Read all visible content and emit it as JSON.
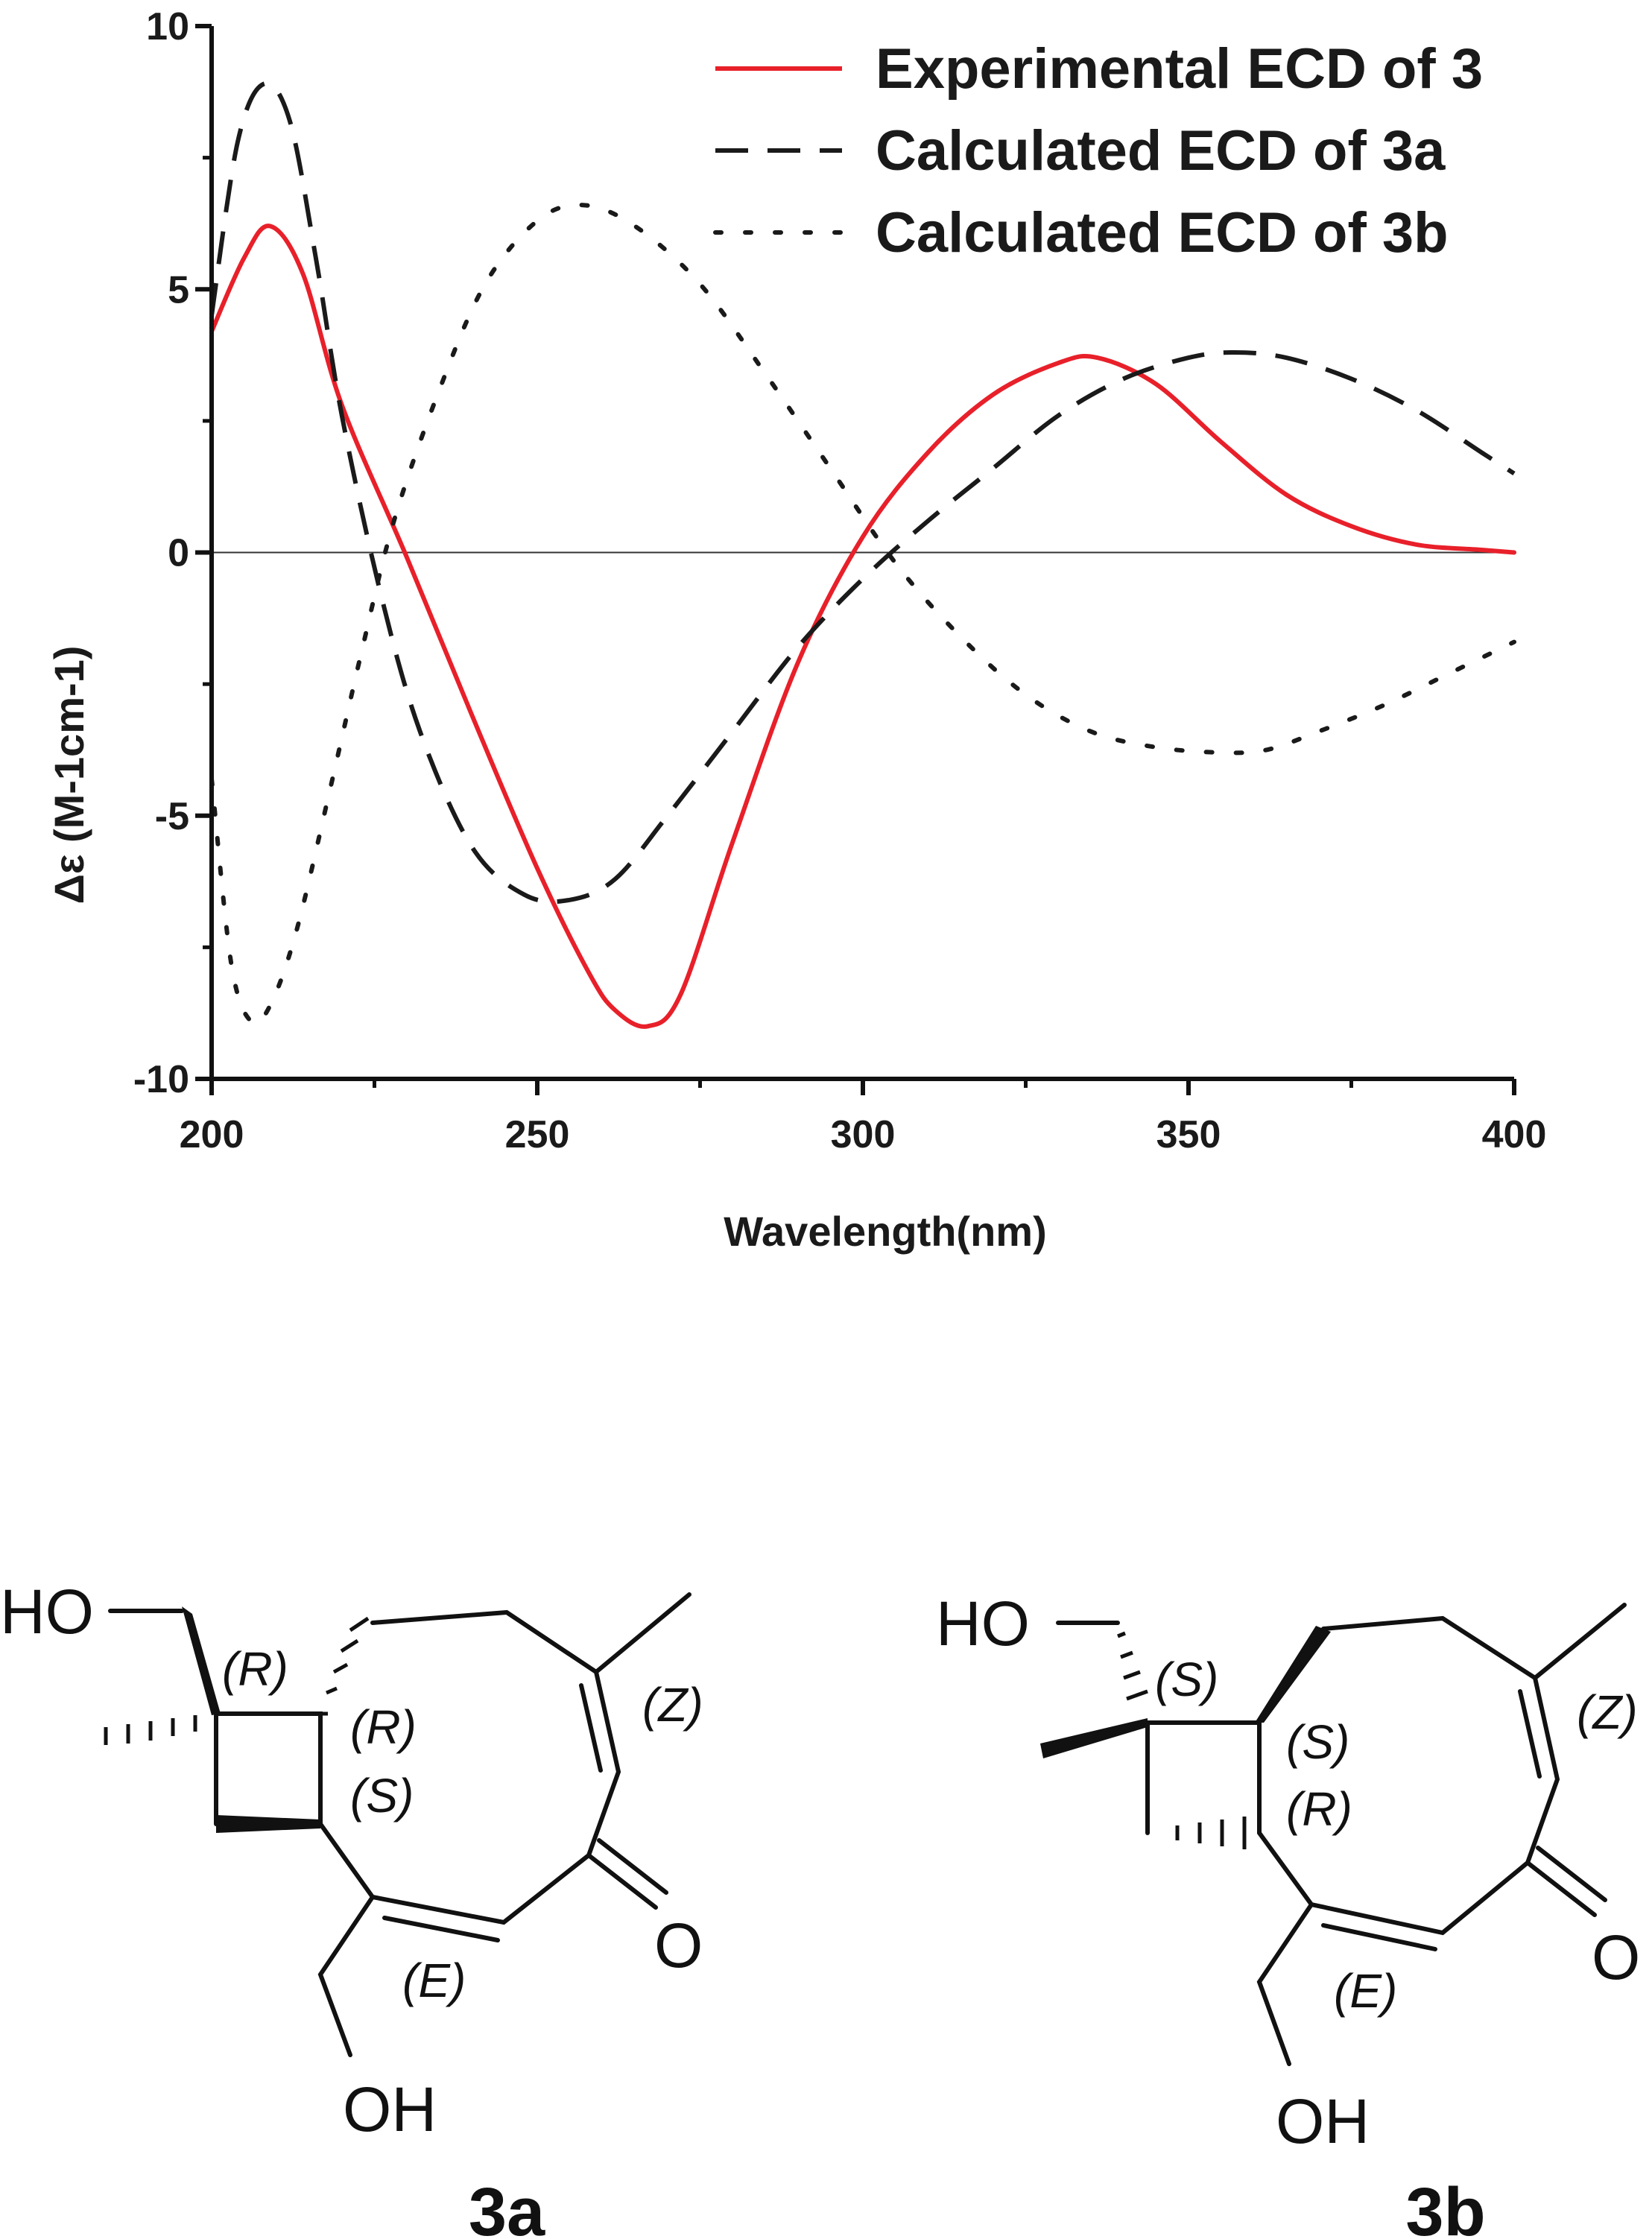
{
  "chart_data": {
    "type": "line",
    "xlabel": "Wavelength(nm)",
    "ylabel": "Δε (M-1cm-1)",
    "xlim": [
      200,
      400
    ],
    "ylim": [
      -10,
      10
    ],
    "x_ticks": [
      "200",
      "250",
      "300",
      "350",
      "400"
    ],
    "y_ticks": [
      "10",
      "5",
      "0",
      "-5",
      "-10"
    ],
    "zero_line": true,
    "legend": "top-right",
    "series": [
      {
        "name": "Experimental ECD of 3",
        "style": "solid",
        "color": "#e8202a",
        "x": [
          200,
          205,
          209,
          214,
          220,
          230,
          240,
          250,
          258,
          262,
          267,
          272,
          280,
          290,
          300,
          310,
          320,
          330,
          336,
          345,
          355,
          365,
          375,
          385,
          395,
          400
        ],
        "y": [
          4.2,
          5.6,
          6.2,
          5.3,
          2.8,
          -0.1,
          -3.1,
          -6.0,
          -8.0,
          -8.7,
          -9.0,
          -8.4,
          -5.5,
          -2.1,
          0.3,
          1.9,
          3.0,
          3.6,
          3.7,
          3.2,
          2.1,
          1.1,
          0.5,
          0.15,
          0.05,
          0.0
        ]
      },
      {
        "name": "Calculated ECD of 3a",
        "style": "dashed",
        "color": "#1a1a1a",
        "x": [
          200,
          204,
          208,
          212,
          216,
          220,
          226,
          232,
          240,
          248,
          255,
          262,
          270,
          280,
          290,
          300,
          310,
          320,
          330,
          340,
          350,
          357,
          365,
          375,
          385,
          395,
          400
        ],
        "y": [
          4.5,
          7.8,
          8.9,
          8.2,
          5.6,
          2.6,
          -0.8,
          -3.4,
          -5.6,
          -6.5,
          -6.6,
          -6.2,
          -5.0,
          -3.4,
          -1.8,
          -0.5,
          0.6,
          1.6,
          2.6,
          3.3,
          3.7,
          3.8,
          3.7,
          3.3,
          2.7,
          1.9,
          1.5
        ]
      },
      {
        "name": "Calculated ECD of 3b",
        "style": "dotted",
        "color": "#1a1a1a",
        "x": [
          200,
          203,
          206,
          209,
          213,
          218,
          223,
          228,
          235,
          242,
          250,
          257,
          265,
          275,
          285,
          295,
          305,
          315,
          325,
          335,
          345,
          355,
          362,
          370,
          380,
          390,
          400
        ],
        "y": [
          -4.3,
          -7.8,
          -8.9,
          -8.6,
          -7.2,
          -4.6,
          -1.9,
          0.6,
          3.1,
          5.1,
          6.3,
          6.6,
          6.2,
          5.1,
          3.4,
          1.6,
          -0.2,
          -1.6,
          -2.7,
          -3.4,
          -3.7,
          -3.8,
          -3.75,
          -3.4,
          -2.9,
          -2.3,
          -1.7
        ]
      }
    ]
  },
  "structures": {
    "left": {
      "label": "3a",
      "atoms": {
        "ho": "HO",
        "oh": "OH",
        "o": "O"
      },
      "stereo": {
        "c1": "(R)",
        "c2": "(R)",
        "c3": "(S)",
        "db_z": "(Z)",
        "db_e": "(E)"
      }
    },
    "right": {
      "label": "3b",
      "atoms": {
        "ho": "HO",
        "oh": "OH",
        "o": "O"
      },
      "stereo": {
        "c1": "(S)",
        "c2": "(S)",
        "c3": "(R)",
        "db_z": "(Z)",
        "db_e": "(E)"
      }
    }
  }
}
